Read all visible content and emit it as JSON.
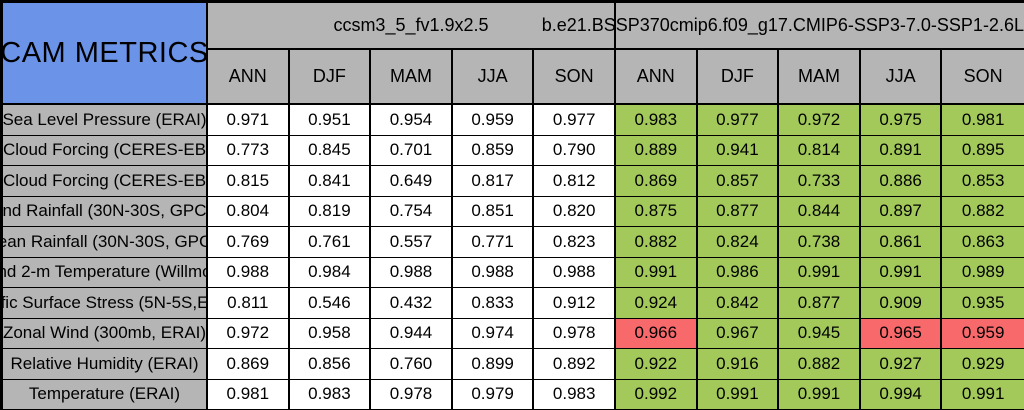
{
  "table": {
    "corner_label": "CAM METRICS",
    "models": [
      {
        "name": "ccsm3_5_fv1.9x2.5",
        "seasons": [
          "ANN",
          "DJF",
          "MAM",
          "JJA",
          "SON"
        ]
      },
      {
        "name": "b.e21.BSSP370cmip6.f09_g17.CMIP6-SSP3-7.0-SSP1-2.6L",
        "seasons": [
          "ANN",
          "DJF",
          "MAM",
          "JJA",
          "SON"
        ]
      }
    ],
    "rows": [
      {
        "label": "Sea Level Pressure (ERAI)",
        "m1": [
          "0.971",
          "0.951",
          "0.954",
          "0.959",
          "0.977"
        ],
        "m2": [
          "0.983",
          "0.977",
          "0.972",
          "0.975",
          "0.981"
        ],
        "m2_status": [
          "good",
          "good",
          "good",
          "good",
          "good"
        ]
      },
      {
        "label": "Cloud Forcing (CERES-EB",
        "m1": [
          "0.773",
          "0.845",
          "0.701",
          "0.859",
          "0.790"
        ],
        "m2": [
          "0.889",
          "0.941",
          "0.814",
          "0.891",
          "0.895"
        ],
        "m2_status": [
          "good",
          "good",
          "good",
          "good",
          "good"
        ]
      },
      {
        "label": "Cloud Forcing (CERES-EB",
        "m1": [
          "0.815",
          "0.841",
          "0.649",
          "0.817",
          "0.812"
        ],
        "m2": [
          "0.869",
          "0.857",
          "0.733",
          "0.886",
          "0.853"
        ],
        "m2_status": [
          "good",
          "good",
          "good",
          "good",
          "good"
        ]
      },
      {
        "label": "nd Rainfall (30N-30S, GPC",
        "m1": [
          "0.804",
          "0.819",
          "0.754",
          "0.851",
          "0.820"
        ],
        "m2": [
          "0.875",
          "0.877",
          "0.844",
          "0.897",
          "0.882"
        ],
        "m2_status": [
          "good",
          "good",
          "good",
          "good",
          "good"
        ]
      },
      {
        "label": "ean Rainfall (30N-30S, GPC",
        "m1": [
          "0.769",
          "0.761",
          "0.557",
          "0.771",
          "0.823"
        ],
        "m2": [
          "0.882",
          "0.824",
          "0.738",
          "0.861",
          "0.863"
        ],
        "m2_status": [
          "good",
          "good",
          "good",
          "good",
          "good"
        ]
      },
      {
        "label": "nd 2-m Temperature (Willmo",
        "m1": [
          "0.988",
          "0.984",
          "0.988",
          "0.988",
          "0.988"
        ],
        "m2": [
          "0.991",
          "0.986",
          "0.991",
          "0.991",
          "0.989"
        ],
        "m2_status": [
          "good",
          "good",
          "good",
          "good",
          "good"
        ]
      },
      {
        "label": "fic Surface Stress (5N-5S,E",
        "m1": [
          "0.811",
          "0.546",
          "0.432",
          "0.833",
          "0.912"
        ],
        "m2": [
          "0.924",
          "0.842",
          "0.877",
          "0.909",
          "0.935"
        ],
        "m2_status": [
          "good",
          "good",
          "good",
          "good",
          "good"
        ]
      },
      {
        "label": "Zonal Wind (300mb, ERAI)",
        "m1": [
          "0.972",
          "0.958",
          "0.944",
          "0.974",
          "0.978"
        ],
        "m2": [
          "0.966",
          "0.967",
          "0.945",
          "0.965",
          "0.959"
        ],
        "m2_status": [
          "bad",
          "good",
          "good",
          "bad",
          "bad"
        ]
      },
      {
        "label": "Relative Humidity (ERAI)",
        "m1": [
          "0.869",
          "0.856",
          "0.760",
          "0.899",
          "0.892"
        ],
        "m2": [
          "0.922",
          "0.916",
          "0.882",
          "0.927",
          "0.929"
        ],
        "m2_status": [
          "good",
          "good",
          "good",
          "good",
          "good"
        ]
      },
      {
        "label": "Temperature (ERAI)",
        "m1": [
          "0.981",
          "0.983",
          "0.978",
          "0.979",
          "0.983"
        ],
        "m2": [
          "0.992",
          "0.991",
          "0.991",
          "0.994",
          "0.991"
        ],
        "m2_status": [
          "good",
          "good",
          "good",
          "good",
          "good"
        ]
      }
    ]
  },
  "colors": {
    "corner_bg": "#6b93e8",
    "header_bg": "#b5b5b5",
    "label_bg": "#b5b5b5",
    "plain_bg": "#ffffff",
    "good_bg": "#a2c95a",
    "bad_bg": "#f8696b",
    "border": "#000000"
  }
}
